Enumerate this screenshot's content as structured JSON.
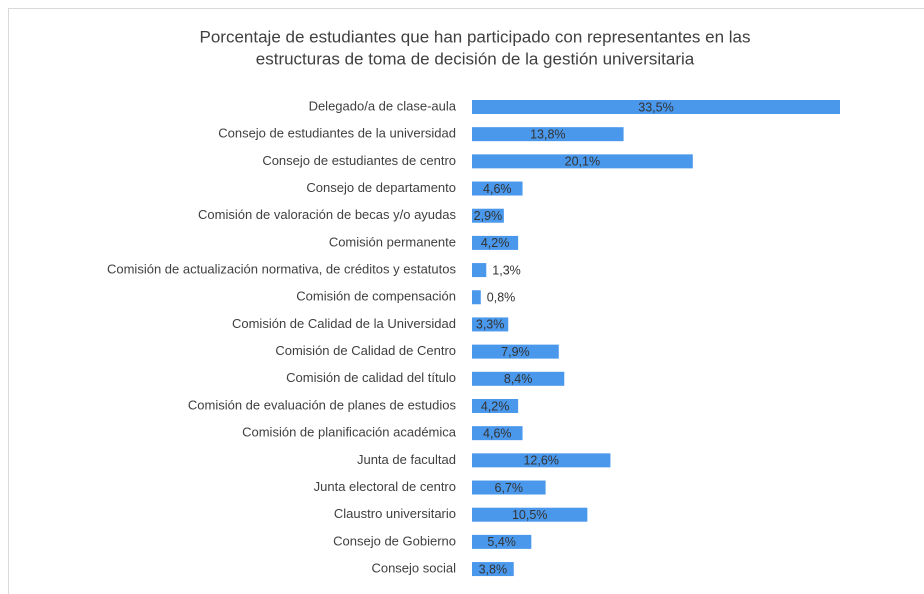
{
  "chart_data": {
    "type": "barh",
    "title": [
      "Porcentaje de estudiantes que han participado con representantes en las",
      "estructuras de toma de decisión de la gestión universitaria"
    ],
    "categories": [
      "Delegado/a de clase-aula",
      "Consejo de estudiantes de la universidad",
      "Consejo de estudiantes de centro",
      "Consejo de departamento",
      "Comisión de valoración de becas y/o ayudas",
      "Comisión permanente",
      "Comisión de actualización normativa, de créditos y estatutos",
      "Comisión de compensación",
      "Comisión de Calidad de la Universidad",
      "Comisión de Calidad de Centro",
      "Comisión de calidad del título",
      "Comisión de evaluación de planes de estudios",
      "Comisión de planificación académica",
      "Junta de facultad",
      "Junta electoral de centro",
      "Claustro universitario",
      "Consejo de Gobierno",
      "Consejo social"
    ],
    "values": [
      33.5,
      13.8,
      20.1,
      4.6,
      2.9,
      4.2,
      1.3,
      0.8,
      3.3,
      7.9,
      8.4,
      4.2,
      4.6,
      12.6,
      6.7,
      10.5,
      5.4,
      3.8
    ],
    "value_labels": [
      "33,5%",
      "13,8%",
      "20,1%",
      "4,6%",
      "2,9%",
      "4,2%",
      "1,3%",
      "0,8%",
      "3,3%",
      "7,9%",
      "8,4%",
      "4,2%",
      "4,6%",
      "12,6%",
      "6,7%",
      "10,5%",
      "5,4%",
      "3,8%"
    ],
    "color": "#4a98ec"
  }
}
